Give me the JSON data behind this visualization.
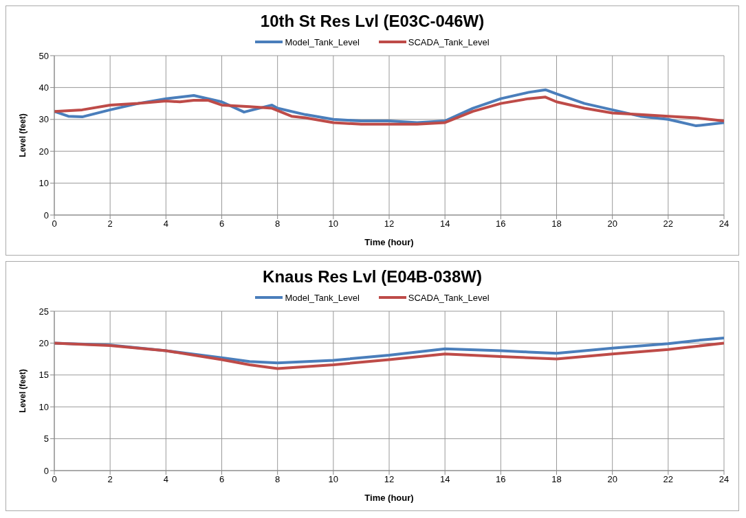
{
  "chart_data": [
    {
      "type": "line",
      "title": "10th St Res Lvl (E03C-046W)",
      "xlabel": "Time (hour)",
      "ylabel": "Level (feet)",
      "xlim": [
        0,
        24
      ],
      "xticks": [
        0,
        2,
        4,
        6,
        8,
        10,
        12,
        14,
        16,
        18,
        20,
        22,
        24
      ],
      "ylim": [
        0,
        50
      ],
      "yticks": [
        0,
        10,
        20,
        30,
        40,
        50
      ],
      "grid": true,
      "legend": "top",
      "marker": "none",
      "line_style": "solid",
      "series": [
        {
          "name": "Model_Tank_Level",
          "color": "#4a7ebb",
          "x": [
            0,
            0.5,
            1,
            2,
            3,
            4,
            5,
            6,
            6.8,
            7.8,
            8,
            9,
            10,
            11,
            12,
            13,
            14,
            15,
            16,
            17,
            17.6,
            18,
            19,
            20,
            21,
            22,
            23,
            24
          ],
          "values": [
            32.5,
            31,
            30.8,
            33,
            35,
            36.5,
            37.5,
            35.5,
            32.3,
            34.5,
            33.5,
            31.5,
            30,
            29.5,
            29.5,
            29,
            29.5,
            33.5,
            36.5,
            38.5,
            39.3,
            38,
            35,
            33,
            31,
            30,
            28,
            29
          ]
        },
        {
          "name": "SCADA_Tank_Level",
          "color": "#be4b48",
          "x": [
            0,
            1,
            2,
            3,
            4,
            4.5,
            5,
            5.5,
            6,
            7,
            7.8,
            8.5,
            9,
            10,
            11,
            12,
            13,
            14,
            15,
            16,
            17,
            17.6,
            18,
            19,
            20,
            21,
            22,
            23,
            24
          ],
          "values": [
            32.5,
            33,
            34.5,
            35,
            35.8,
            35.5,
            36,
            36,
            34.5,
            34,
            33.5,
            31,
            30.5,
            29,
            28.5,
            28.5,
            28.5,
            29,
            32.5,
            35,
            36.5,
            37,
            35.5,
            33.5,
            32,
            31.5,
            31,
            30.5,
            29.5
          ]
        }
      ]
    },
    {
      "type": "line",
      "title": "Knaus Res Lvl (E04B-038W)",
      "xlabel": "Time (hour)",
      "ylabel": "Level (feet)",
      "xlim": [
        0,
        24
      ],
      "xticks": [
        0,
        2,
        4,
        6,
        8,
        10,
        12,
        14,
        16,
        18,
        20,
        22,
        24
      ],
      "ylim": [
        0,
        25
      ],
      "yticks": [
        0,
        5,
        10,
        15,
        20,
        25
      ],
      "grid": true,
      "legend": "top",
      "marker": "none",
      "line_style": "solid",
      "series": [
        {
          "name": "Model_Tank_Level",
          "color": "#4a7ebb",
          "x": [
            0,
            2,
            4,
            6,
            7,
            8,
            10,
            12,
            14,
            16,
            17,
            18,
            20,
            22,
            23,
            24
          ],
          "values": [
            20,
            19.7,
            18.8,
            17.7,
            17.1,
            16.9,
            17.3,
            18.1,
            19.1,
            18.8,
            18.6,
            18.4,
            19.2,
            19.9,
            20.4,
            20.8
          ]
        },
        {
          "name": "SCADA_Tank_Level",
          "color": "#be4b48",
          "x": [
            0,
            2,
            4,
            6,
            7,
            8,
            9,
            10,
            12,
            14,
            16,
            18,
            20,
            22,
            24
          ],
          "values": [
            20,
            19.6,
            18.8,
            17.4,
            16.6,
            16,
            16.3,
            16.6,
            17.4,
            18.3,
            17.9,
            17.5,
            18.3,
            19,
            20
          ]
        }
      ]
    }
  ]
}
